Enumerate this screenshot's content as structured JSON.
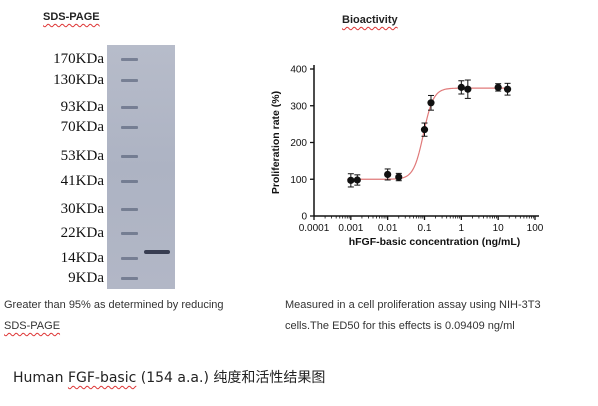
{
  "sds_page": {
    "title": "SDS-PAGE",
    "markers": [
      "170KDa",
      "130KDa",
      "93KDa",
      "70KDa",
      "53KDa",
      "41KDa",
      "30KDa",
      "22KDa",
      "14KDa",
      "9KDa"
    ]
  },
  "bioactivity": {
    "title": "Bioactivity"
  },
  "captions": {
    "left_line1": "Greater than 95% as determined by reducing",
    "left_line2": "SDS-PAGE",
    "right_line1": "Measured in a cell proliferation assay using NIH-3T3",
    "right_line2": "cells.The ED50 for this effects is 0.09409 ng/ml"
  },
  "footer": {
    "prefix": "Human ",
    "underlined": "FGF-basic",
    "suffix": " (154 a.a.) 纯度和活性结果图"
  },
  "chart_data": {
    "type": "scatter",
    "title": "",
    "xlabel": "hFGF-basic concentration (ng/mL)",
    "ylabel": "Proliferation rate (%)",
    "xscale": "log",
    "xlim": [
      0.0001,
      100
    ],
    "ylim": [
      0,
      400
    ],
    "xticks": [
      "0.0001",
      "0.001",
      "0.01",
      "0.1",
      "1",
      "10",
      "100"
    ],
    "yticks": [
      "0",
      "100",
      "200",
      "300",
      "400"
    ],
    "grid": false,
    "marker_color": "#111111",
    "curve_color": "#e07a7a",
    "fit": {
      "bottom": 100,
      "top": 348,
      "ec50": 0.094,
      "hill": 3.2
    },
    "series": [
      {
        "x": [
          0.001,
          0.0015,
          0.01,
          0.02,
          0.1,
          0.15,
          1,
          1.5,
          10,
          18
        ],
        "y": [
          97,
          98,
          113,
          106,
          235,
          308,
          350,
          345,
          350,
          345
        ],
        "err": [
          18,
          14,
          15,
          10,
          18,
          20,
          18,
          25,
          10,
          16
        ]
      }
    ]
  }
}
